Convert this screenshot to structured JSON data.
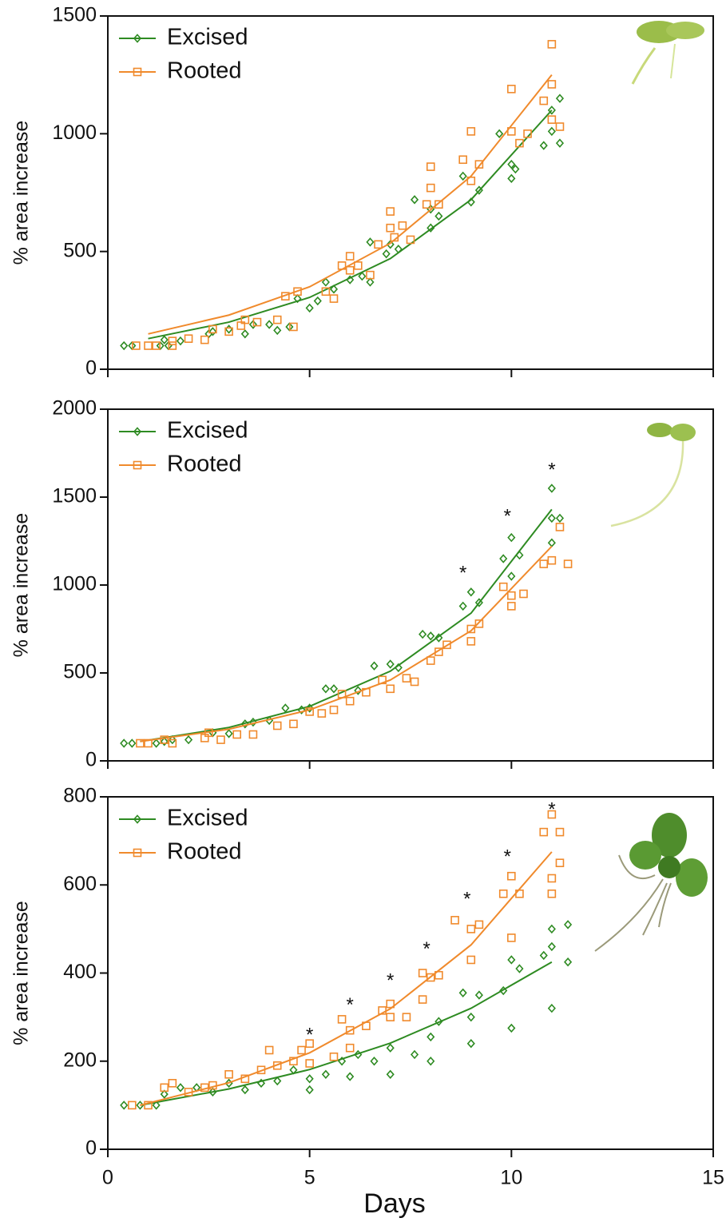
{
  "chart_data": [
    {
      "type": "scatter",
      "ylabel": "% area increase",
      "xlim": [
        0,
        15
      ],
      "xticks": [
        0,
        5,
        10,
        15
      ],
      "ylim": [
        0,
        1500
      ],
      "yticks": [
        0,
        500,
        1000,
        1500
      ],
      "legend": "top-left",
      "series": [
        {
          "name": "Excised",
          "color": "#2e8b22",
          "marker": "diamond",
          "x": [
            0.4,
            0.6,
            1.3,
            1.5,
            1.4,
            1.8,
            2.5,
            2.6,
            3.0,
            3.4,
            3.6,
            4.0,
            4.2,
            4.5,
            4.7,
            5.0,
            5.2,
            5.4,
            5.6,
            6.0,
            6.3,
            6.5,
            6.5,
            6.9,
            7.0,
            7.2,
            7.6,
            8.0,
            8.0,
            8.2,
            8.8,
            9.0,
            9.2,
            9.7,
            10.0,
            10.0,
            10.1,
            10.8,
            11.0,
            11.0,
            11.2,
            11.2
          ],
          "values": [
            100,
            100,
            100,
            100,
            125,
            120,
            150,
            160,
            170,
            150,
            190,
            190,
            165,
            180,
            300,
            260,
            290,
            370,
            340,
            380,
            395,
            370,
            540,
            490,
            530,
            510,
            720,
            600,
            680,
            650,
            820,
            710,
            760,
            1000,
            870,
            810,
            850,
            950,
            1100,
            1010,
            960,
            1150
          ],
          "fit_x": [
            1,
            3,
            5,
            7,
            9,
            11
          ],
          "fit": [
            130,
            200,
            305,
            470,
            720,
            1100
          ]
        },
        {
          "name": "Rooted",
          "color": "#f08a2c",
          "marker": "square",
          "x": [
            0.7,
            1.0,
            1.2,
            1.6,
            1.6,
            2.0,
            2.4,
            2.6,
            3.0,
            3.3,
            3.4,
            3.7,
            4.2,
            4.4,
            4.6,
            4.7,
            5.4,
            5.6,
            5.8,
            6.0,
            6.0,
            6.2,
            6.5,
            6.7,
            7.0,
            7.0,
            7.1,
            7.3,
            7.5,
            7.9,
            8.0,
            8.0,
            8.2,
            8.8,
            9.0,
            9.0,
            9.2,
            10.0,
            10.0,
            10.2,
            10.4,
            10.8,
            11.0,
            11.0,
            11.0,
            11.2
          ],
          "values": [
            100,
            100,
            100,
            100,
            120,
            130,
            125,
            170,
            160,
            185,
            210,
            200,
            210,
            310,
            180,
            330,
            330,
            300,
            440,
            480,
            420,
            440,
            400,
            530,
            600,
            670,
            560,
            610,
            550,
            700,
            770,
            860,
            700,
            890,
            1010,
            800,
            870,
            1190,
            1010,
            960,
            1000,
            1140,
            1380,
            1210,
            1060,
            1030
          ],
          "fit_x": [
            1,
            3,
            5,
            7,
            9,
            11
          ],
          "fit": [
            150,
            230,
            350,
            535,
            820,
            1250
          ]
        }
      ]
    },
    {
      "type": "scatter",
      "ylabel": "% area increase",
      "xlim": [
        0,
        15
      ],
      "xticks": [
        0,
        5,
        10,
        15
      ],
      "ylim": [
        0,
        2000
      ],
      "yticks": [
        0,
        500,
        1000,
        1500,
        2000
      ],
      "legend": "top-left",
      "series": [
        {
          "name": "Excised",
          "color": "#2e8b22",
          "marker": "diamond",
          "x": [
            0.4,
            0.6,
            1.2,
            1.4,
            1.6,
            2.0,
            2.6,
            3.0,
            3.4,
            3.6,
            4.0,
            4.4,
            4.8,
            5.0,
            5.4,
            5.6,
            6.2,
            6.6,
            7.0,
            7.2,
            7.8,
            8.0,
            8.2,
            8.8,
            9.0,
            9.2,
            9.8,
            10.0,
            10.0,
            10.2,
            11.0,
            11.0,
            11.0,
            11.2
          ],
          "values": [
            100,
            100,
            100,
            110,
            120,
            120,
            160,
            155,
            210,
            220,
            230,
            300,
            290,
            300,
            410,
            410,
            400,
            540,
            550,
            530,
            720,
            710,
            700,
            880,
            960,
            900,
            1150,
            1270,
            1050,
            1170,
            1380,
            1550,
            1240,
            1380
          ],
          "fit_x": [
            0.8,
            3,
            5,
            7,
            9,
            11
          ],
          "fit": [
            110,
            190,
            310,
            510,
            840,
            1430
          ]
        },
        {
          "name": "Rooted",
          "color": "#f08a2c",
          "marker": "square",
          "x": [
            0.8,
            1.0,
            1.4,
            1.6,
            2.4,
            2.5,
            2.8,
            3.2,
            3.6,
            4.2,
            4.6,
            5.0,
            5.3,
            5.6,
            5.8,
            6.0,
            6.4,
            6.8,
            7.0,
            7.4,
            7.6,
            8.0,
            8.2,
            8.4,
            9.0,
            9.0,
            9.2,
            9.8,
            10.0,
            10.0,
            10.3,
            10.8,
            11.0,
            11.2,
            11.4
          ],
          "values": [
            100,
            100,
            120,
            100,
            130,
            160,
            120,
            150,
            150,
            200,
            210,
            280,
            270,
            290,
            380,
            340,
            390,
            460,
            410,
            470,
            450,
            570,
            620,
            660,
            680,
            750,
            780,
            990,
            880,
            940,
            950,
            1120,
            1140,
            1330,
            1120
          ],
          "fit_x": [
            0.8,
            3,
            5,
            7,
            9,
            11
          ],
          "fit": [
            110,
            180,
            290,
            460,
            740,
            1220
          ]
        }
      ],
      "annotations": [
        {
          "text": "*",
          "x": 8.8,
          "y": 1090
        },
        {
          "text": "*",
          "x": 9.9,
          "y": 1414
        },
        {
          "text": "*",
          "x": 11.0,
          "y": 1677
        }
      ]
    },
    {
      "type": "scatter",
      "ylabel": "% area increase",
      "xlabel": "Days",
      "xlim": [
        0,
        15
      ],
      "xticks": [
        0,
        5,
        10,
        15
      ],
      "ylim": [
        0,
        800
      ],
      "yticks": [
        0,
        200,
        400,
        600,
        800
      ],
      "legend": "top-left",
      "series": [
        {
          "name": "Excised",
          "color": "#2e8b22",
          "marker": "diamond",
          "x": [
            0.4,
            0.8,
            1.2,
            1.4,
            1.8,
            2.2,
            2.6,
            3.0,
            3.4,
            3.8,
            4.2,
            4.6,
            5.0,
            5.0,
            5.4,
            5.8,
            6.0,
            6.2,
            6.6,
            7.0,
            7.0,
            7.6,
            8.0,
            8.0,
            8.2,
            8.8,
            9.0,
            9.0,
            9.2,
            9.8,
            10.0,
            10.0,
            10.2,
            10.8,
            11.0,
            11.0,
            11.0,
            11.4,
            11.4
          ],
          "values": [
            100,
            100,
            100,
            125,
            140,
            140,
            130,
            150,
            135,
            150,
            155,
            180,
            135,
            160,
            170,
            200,
            165,
            215,
            200,
            170,
            230,
            215,
            200,
            255,
            290,
            355,
            240,
            300,
            350,
            360,
            275,
            430,
            410,
            440,
            320,
            500,
            460,
            510,
            425
          ],
          "fit_x": [
            0.8,
            3,
            5,
            7,
            9,
            11
          ],
          "fit": [
            100,
            137,
            181,
            241,
            320,
            425
          ]
        },
        {
          "name": "Rooted",
          "color": "#f08a2c",
          "marker": "square",
          "x": [
            0.6,
            1.0,
            1.4,
            1.6,
            2.0,
            2.4,
            2.6,
            3.0,
            3.4,
            3.8,
            4.0,
            4.2,
            4.6,
            4.8,
            5.0,
            5.0,
            5.6,
            5.8,
            6.0,
            6.0,
            6.4,
            6.8,
            7.0,
            7.0,
            7.4,
            7.8,
            7.8,
            8.0,
            8.2,
            8.6,
            9.0,
            9.0,
            9.2,
            9.8,
            10.0,
            10.0,
            10.2,
            10.8,
            11.0,
            11.0,
            11.0,
            11.2,
            11.2
          ],
          "values": [
            100,
            100,
            140,
            150,
            130,
            140,
            145,
            170,
            160,
            180,
            225,
            190,
            200,
            225,
            195,
            240,
            210,
            295,
            270,
            230,
            280,
            315,
            300,
            330,
            300,
            400,
            340,
            390,
            395,
            520,
            500,
            430,
            510,
            580,
            620,
            480,
            580,
            720,
            760,
            615,
            580,
            650,
            720
          ],
          "fit_x": [
            0.8,
            3,
            5,
            7,
            9,
            11
          ],
          "fit": [
            100,
            151,
            219,
            319,
            464,
            675
          ]
        }
      ],
      "annotations": [
        {
          "text": "*",
          "x": 5.0,
          "y": 268
        },
        {
          "text": "*",
          "x": 6.0,
          "y": 336
        },
        {
          "text": "*",
          "x": 7.0,
          "y": 392
        },
        {
          "text": "*",
          "x": 7.9,
          "y": 463
        },
        {
          "text": "*",
          "x": 8.9,
          "y": 577
        },
        {
          "text": "*",
          "x": 9.9,
          "y": 673
        },
        {
          "text": "*",
          "x": 11.0,
          "y": 780
        }
      ]
    }
  ]
}
